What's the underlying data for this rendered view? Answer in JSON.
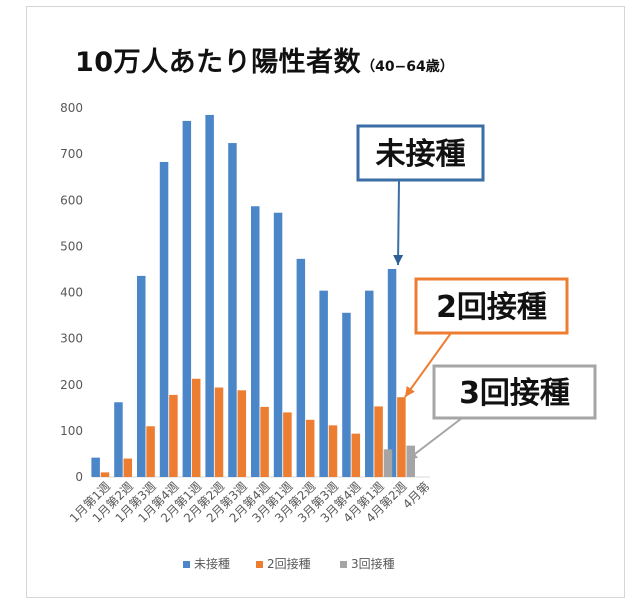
{
  "chart_data": {
    "type": "bar",
    "title": "10万人あたり陽性者数",
    "subtitle": "（40−64歳）",
    "categories": [
      "1月第1週",
      "1月第2週",
      "1月第3週",
      "1月第4週",
      "2月第1週",
      "2月第2週",
      "2月第3週",
      "2月第4週",
      "3月第1週",
      "3月第2週",
      "3月第3週",
      "3月第4週",
      "4月第1週",
      "4月第2週",
      "4月第"
    ],
    "ylim": [
      0,
      800
    ],
    "yticks": [
      "0",
      "100",
      "200",
      "300",
      "400",
      "500",
      "600",
      "700",
      "800"
    ],
    "grid": false,
    "legend_position": "bottom",
    "series": [
      {
        "name": "未接種",
        "color": "#4a86c8",
        "values": [
          42,
          162,
          436,
          683,
          772,
          785,
          724,
          587,
          573,
          473,
          404,
          356,
          404,
          451,
          null
        ]
      },
      {
        "name": "2回接種",
        "color": "#ed7d31",
        "values": [
          10,
          40,
          110,
          178,
          213,
          194,
          188,
          152,
          140,
          124,
          112,
          94,
          153,
          173,
          null
        ]
      },
      {
        "name": "3回接種",
        "color": "#a5a5a5",
        "values": [
          null,
          null,
          null,
          null,
          null,
          null,
          null,
          null,
          null,
          null,
          null,
          null,
          60,
          68,
          null
        ]
      }
    ],
    "annotations": [
      {
        "text": "未接種",
        "border": "#3a6ea5"
      },
      {
        "text": "2回接種",
        "border": "#ed7d31"
      },
      {
        "text": "3回接種",
        "border": "#a5a5a5"
      }
    ]
  }
}
